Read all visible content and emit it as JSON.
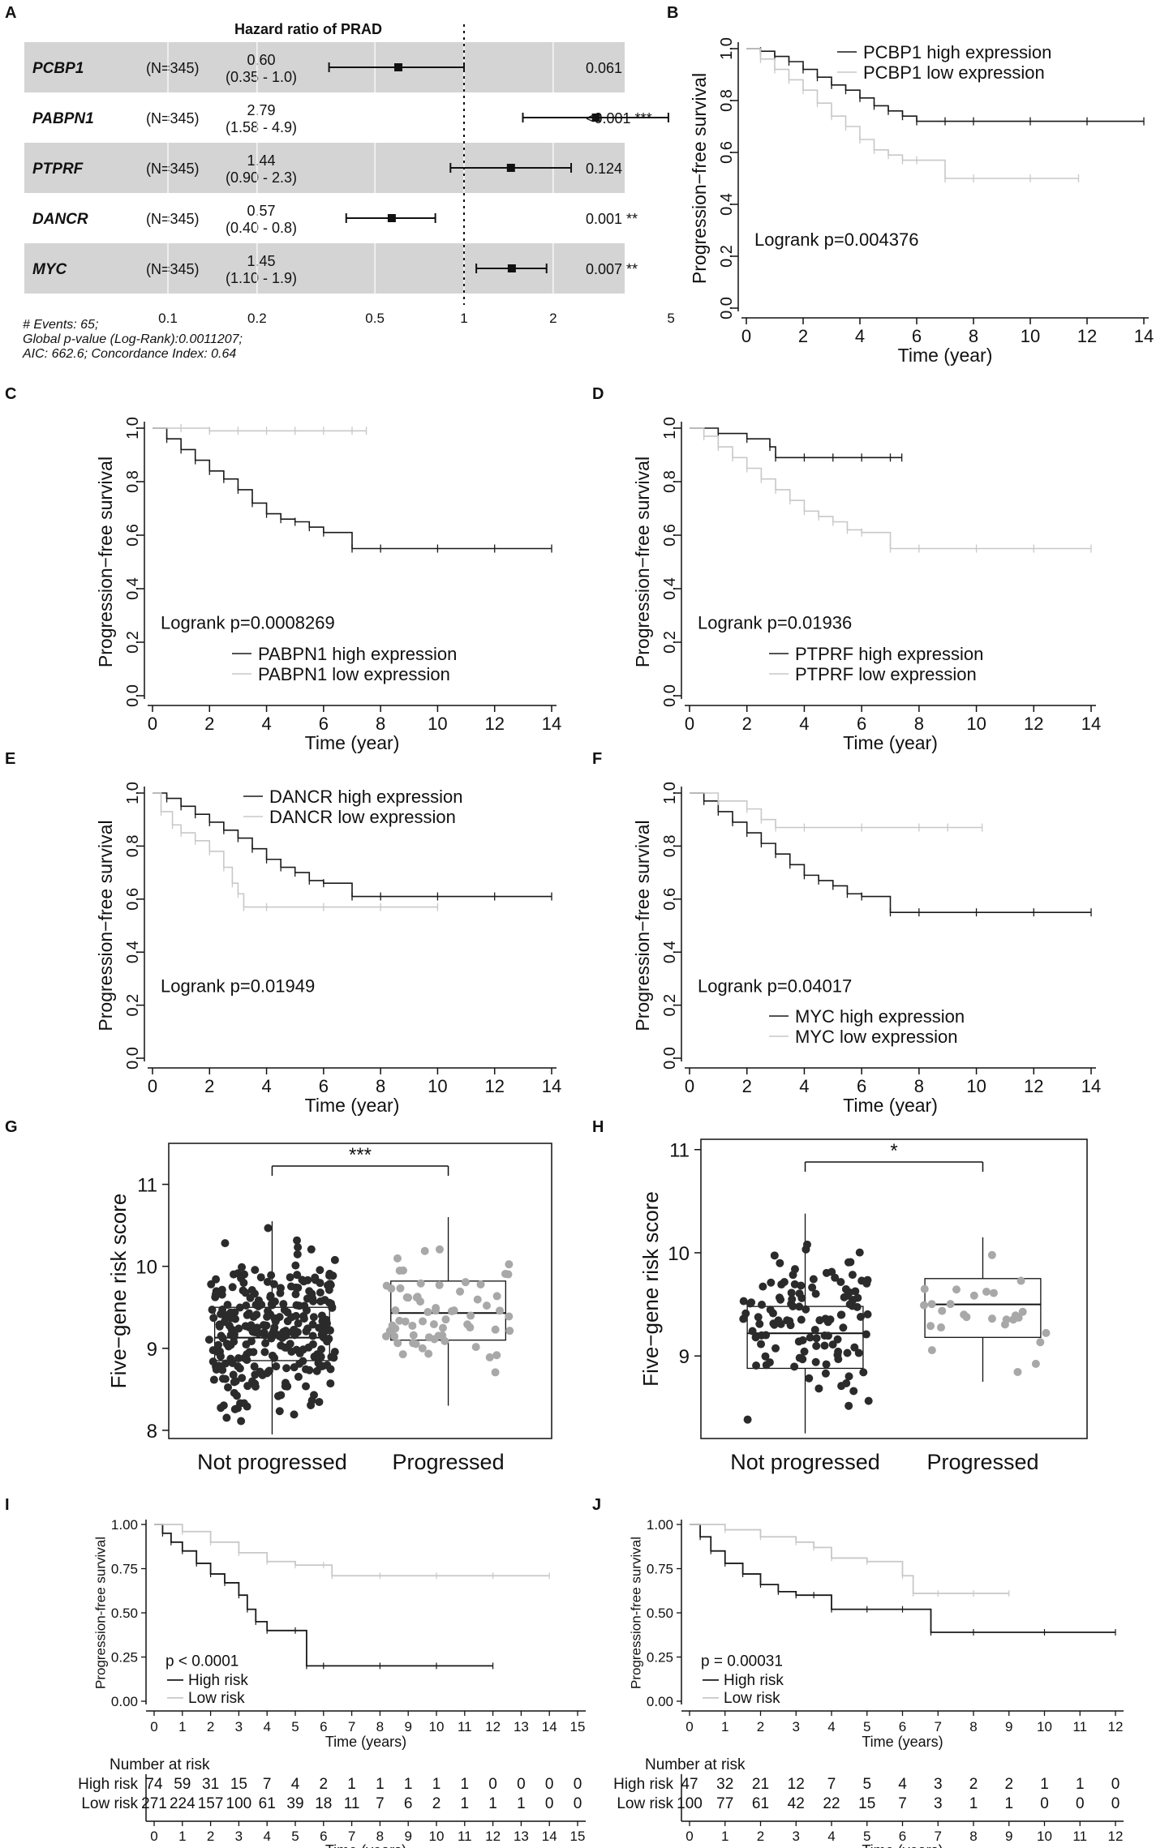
{
  "figure": {
    "panel_labels": [
      "A",
      "B",
      "C",
      "D",
      "E",
      "F",
      "G",
      "H",
      "I",
      "J"
    ]
  },
  "colors": {
    "high": "#1a1a1a",
    "low": "#c8c8c8",
    "forest_band": "#d4d4d4",
    "dark_point": "#2b2b2b",
    "light_point": "#a8a8a8"
  },
  "chart_data": [
    {
      "id": "A",
      "type": "forest",
      "title": "Hazard ratio of PRAD",
      "x_scale": "log",
      "x_ticks": [
        0.1,
        0.2,
        0.5,
        1,
        2,
        5
      ],
      "reference_line": 1,
      "rows": [
        {
          "gene": "PCBP1",
          "n": "(N=345)",
          "hr_text": "0.60",
          "ci_text": "(0.35 - 1.0)",
          "hr": 0.6,
          "lo": 0.35,
          "hi": 1.0,
          "p_text": "0.061",
          "shaded": true
        },
        {
          "gene": "PABPN1",
          "n": "(N=345)",
          "hr_text": "2.79",
          "ci_text": "(1.58 - 4.9)",
          "hr": 2.79,
          "lo": 1.58,
          "hi": 4.9,
          "p_text": "<0.001 ***",
          "shaded": false
        },
        {
          "gene": "PTPRF",
          "n": "(N=345)",
          "hr_text": "1.44",
          "ci_text": "(0.90 - 2.3)",
          "hr": 1.44,
          "lo": 0.9,
          "hi": 2.3,
          "p_text": "0.124",
          "shaded": true
        },
        {
          "gene": "DANCR",
          "n": "(N=345)",
          "hr_text": "0.57",
          "ci_text": "(0.40 - 0.8)",
          "hr": 0.57,
          "lo": 0.4,
          "hi": 0.8,
          "p_text": "0.001 **",
          "shaded": false
        },
        {
          "gene": "MYC",
          "n": "(N=345)",
          "hr_text": "1.45",
          "ci_text": "(1.10 - 1.9)",
          "hr": 1.45,
          "lo": 1.1,
          "hi": 1.9,
          "p_text": "0.007 **",
          "shaded": true
        }
      ],
      "footnotes": [
        "# Events: 65;",
        "Global p-value (Log-Rank):0.0011207;",
        "AIC: 662.6; Concordance Index: 0.64"
      ]
    },
    {
      "id": "B",
      "type": "km",
      "ylabel": "Progression−free survival",
      "xlabel": "Time (year)",
      "xlim": [
        0,
        14
      ],
      "ylim": [
        0,
        1
      ],
      "x_ticks": [
        0,
        2,
        4,
        6,
        8,
        10,
        12,
        14
      ],
      "y_ticks": [
        "0.0",
        "0.2",
        "0.4",
        "0.6",
        "0.8",
        "1.0"
      ],
      "legend_position": "top",
      "pvalue_text": "Logrank p=0.004376",
      "pvalue_position": "lower-middle",
      "series": [
        {
          "name": "PCBP1 high expression",
          "group": "high",
          "x": [
            0,
            0.5,
            1,
            1.5,
            2,
            2.5,
            3,
            3.5,
            4,
            4.5,
            5,
            5.5,
            6,
            7,
            8,
            10,
            12,
            14
          ],
          "y": [
            1,
            0.99,
            0.97,
            0.95,
            0.92,
            0.89,
            0.86,
            0.84,
            0.81,
            0.78,
            0.76,
            0.74,
            0.72,
            0.72,
            0.72,
            0.72,
            0.72,
            0.72
          ]
        },
        {
          "name": "PCBP1 low expression",
          "group": "low",
          "x": [
            0,
            0.5,
            1,
            1.5,
            2,
            2.5,
            3,
            3.5,
            4,
            4.5,
            5,
            5.5,
            6,
            7,
            8,
            10,
            11.7
          ],
          "y": [
            1,
            0.96,
            0.92,
            0.88,
            0.84,
            0.79,
            0.74,
            0.7,
            0.65,
            0.61,
            0.59,
            0.57,
            0.57,
            0.5,
            0.5,
            0.5,
            0.5
          ]
        }
      ]
    },
    {
      "id": "C",
      "type": "km",
      "ylabel": "Progression−free survival",
      "xlabel": "Time (year)",
      "xlim": [
        0,
        14
      ],
      "ylim": [
        0,
        1
      ],
      "x_ticks": [
        0,
        2,
        4,
        6,
        8,
        10,
        12,
        14
      ],
      "y_ticks": [
        "0.0",
        "0.2",
        "0.4",
        "0.6",
        "0.8",
        "1.0"
      ],
      "legend_position": "bottom",
      "pvalue_text": "Logrank p=0.0008269",
      "pvalue_position": "lower-left",
      "series": [
        {
          "name": "PABPN1 high expression",
          "group": "high",
          "x": [
            0,
            0.5,
            1,
            1.5,
            2,
            2.5,
            3,
            3.5,
            4,
            4.5,
            5,
            5.5,
            6,
            7,
            8,
            10,
            12,
            14
          ],
          "y": [
            1,
            0.96,
            0.92,
            0.88,
            0.84,
            0.81,
            0.77,
            0.72,
            0.68,
            0.66,
            0.65,
            0.63,
            0.61,
            0.55,
            0.55,
            0.55,
            0.55,
            0.55
          ]
        },
        {
          "name": "PABPN1 low expression",
          "group": "low",
          "x": [
            0,
            1,
            2,
            3,
            4,
            5,
            6,
            7,
            7.5
          ],
          "y": [
            1,
            1,
            0.99,
            0.99,
            0.99,
            0.99,
            0.99,
            0.99,
            0.99
          ]
        }
      ]
    },
    {
      "id": "D",
      "type": "km",
      "ylabel": "Progression−free survival",
      "xlabel": "Time (year)",
      "xlim": [
        0,
        14
      ],
      "ylim": [
        0,
        1
      ],
      "x_ticks": [
        0,
        2,
        4,
        6,
        8,
        10,
        12,
        14
      ],
      "y_ticks": [
        "0.0",
        "0.2",
        "0.4",
        "0.6",
        "0.8",
        "1.0"
      ],
      "legend_position": "bottom",
      "pvalue_text": "Logrank p=0.01936",
      "pvalue_position": "lower-left",
      "series": [
        {
          "name": "PTPRF high expression",
          "group": "high",
          "x": [
            0,
            1,
            2,
            2.8,
            3,
            4,
            5,
            6,
            7,
            7.4
          ],
          "y": [
            1,
            0.98,
            0.96,
            0.93,
            0.89,
            0.89,
            0.89,
            0.89,
            0.89,
            0.89
          ]
        },
        {
          "name": "PTPRF low expression",
          "group": "low",
          "x": [
            0,
            0.5,
            1,
            1.5,
            2,
            2.5,
            3,
            3.5,
            4,
            4.5,
            5,
            5.5,
            6,
            7,
            8,
            10,
            12,
            14
          ],
          "y": [
            1,
            0.97,
            0.93,
            0.89,
            0.85,
            0.81,
            0.77,
            0.73,
            0.69,
            0.67,
            0.65,
            0.62,
            0.61,
            0.55,
            0.55,
            0.55,
            0.55,
            0.55
          ]
        }
      ]
    },
    {
      "id": "E",
      "type": "km",
      "ylabel": "Progression−free survival",
      "xlabel": "Time (year)",
      "xlim": [
        0,
        14
      ],
      "ylim": [
        0,
        1
      ],
      "x_ticks": [
        0,
        2,
        4,
        6,
        8,
        10,
        12,
        14
      ],
      "y_ticks": [
        "0.0",
        "0.2",
        "0.4",
        "0.6",
        "0.8",
        "1.0"
      ],
      "legend_position": "top",
      "pvalue_text": "Logrank p=0.01949",
      "pvalue_position": "lower-left",
      "series": [
        {
          "name": "DANCR high expression",
          "group": "high",
          "x": [
            0,
            0.5,
            1,
            1.5,
            2,
            2.5,
            3,
            3.5,
            4,
            4.5,
            5,
            5.5,
            6,
            7,
            8,
            10,
            12,
            14
          ],
          "y": [
            1,
            0.98,
            0.95,
            0.92,
            0.89,
            0.86,
            0.83,
            0.79,
            0.75,
            0.72,
            0.7,
            0.67,
            0.66,
            0.61,
            0.61,
            0.61,
            0.61,
            0.61
          ]
        },
        {
          "name": "DANCR low expression",
          "group": "low",
          "x": [
            0,
            0.3,
            0.7,
            1,
            1.5,
            2,
            2.5,
            2.8,
            3,
            3.2,
            4,
            6,
            8,
            10
          ],
          "y": [
            1,
            0.93,
            0.88,
            0.85,
            0.82,
            0.78,
            0.72,
            0.66,
            0.62,
            0.57,
            0.57,
            0.57,
            0.57,
            0.57
          ]
        }
      ]
    },
    {
      "id": "F",
      "type": "km",
      "ylabel": "Progression−free survival",
      "xlabel": "Time (year)",
      "xlim": [
        0,
        14
      ],
      "ylim": [
        0,
        1
      ],
      "x_ticks": [
        0,
        2,
        4,
        6,
        8,
        10,
        12,
        14
      ],
      "y_ticks": [
        "0.0",
        "0.2",
        "0.4",
        "0.6",
        "0.8",
        "1.0"
      ],
      "legend_position": "bottom",
      "pvalue_text": "Logrank p=0.04017",
      "pvalue_position": "lower-left",
      "series": [
        {
          "name": "MYC high expression",
          "group": "high",
          "x": [
            0,
            0.5,
            1,
            1.5,
            2,
            2.5,
            3,
            3.5,
            4,
            4.5,
            5,
            5.5,
            6,
            7,
            8,
            10,
            12,
            14
          ],
          "y": [
            1,
            0.97,
            0.93,
            0.89,
            0.85,
            0.81,
            0.77,
            0.73,
            0.69,
            0.67,
            0.65,
            0.62,
            0.61,
            0.55,
            0.55,
            0.55,
            0.55,
            0.55
          ]
        },
        {
          "name": "MYC low expression",
          "group": "low",
          "x": [
            0,
            1,
            2,
            2.5,
            3,
            4,
            6,
            8,
            9,
            10.2
          ],
          "y": [
            1,
            0.97,
            0.94,
            0.9,
            0.87,
            0.87,
            0.87,
            0.87,
            0.87,
            0.87
          ]
        }
      ]
    },
    {
      "id": "G",
      "type": "box",
      "ylabel": "Five−gene risk score",
      "ylim": [
        7.9,
        11.5
      ],
      "y_ticks": [
        8,
        9,
        10,
        11
      ],
      "categories": [
        "Not progressed",
        "Progressed"
      ],
      "boxes": [
        {
          "name": "Not progressed",
          "min": 7.95,
          "q1": 8.85,
          "median": 9.13,
          "q3": 9.5,
          "max": 10.55,
          "n_points": 280,
          "point_group": "dark"
        },
        {
          "name": "Progressed",
          "min": 8.3,
          "q1": 9.1,
          "median": 9.43,
          "q3": 9.82,
          "max": 10.6,
          "n_points": 65,
          "point_group": "light"
        }
      ],
      "significance": "***"
    },
    {
      "id": "H",
      "type": "box",
      "ylabel": "Five−gene risk score",
      "ylim": [
        8.2,
        11.1
      ],
      "y_ticks": [
        9,
        10,
        11
      ],
      "categories": [
        "Not progressed",
        "Progressed"
      ],
      "boxes": [
        {
          "name": "Not progressed",
          "min": 8.25,
          "q1": 8.88,
          "median": 9.22,
          "q3": 9.48,
          "max": 10.38,
          "n_points": 120,
          "point_group": "dark"
        },
        {
          "name": "Progressed",
          "min": 8.75,
          "q1": 9.18,
          "median": 9.5,
          "q3": 9.75,
          "max": 10.15,
          "n_points": 27,
          "point_group": "light"
        }
      ],
      "significance": "*"
    },
    {
      "id": "I",
      "type": "km_risk",
      "ylabel": "Progression-free survival",
      "xlabel": "Time (years)",
      "xlim": [
        0,
        15
      ],
      "ylim": [
        0,
        1
      ],
      "x_ticks": [
        "0",
        "1",
        "2",
        "3",
        "4",
        "5",
        "6",
        "7",
        "8",
        "9",
        "10",
        "11",
        "12",
        "13",
        "14",
        "15"
      ],
      "y_ticks": [
        "0.00",
        "0.25",
        "0.50",
        "0.75",
        "1.00"
      ],
      "pvalue_text": "p < 0.0001",
      "series": [
        {
          "name": "High risk",
          "group": "high",
          "x": [
            0,
            0.3,
            0.6,
            1,
            1.5,
            2,
            2.5,
            3,
            3.3,
            3.6,
            4,
            5,
            5.4,
            6,
            8,
            10,
            12
          ],
          "y": [
            1,
            0.95,
            0.9,
            0.85,
            0.78,
            0.72,
            0.67,
            0.6,
            0.52,
            0.45,
            0.4,
            0.4,
            0.2,
            0.2,
            0.2,
            0.2,
            0.2
          ]
        },
        {
          "name": "Low risk",
          "group": "low",
          "x": [
            0,
            1,
            2,
            3,
            4,
            5,
            6,
            6.3,
            8,
            10,
            12,
            14
          ],
          "y": [
            1,
            0.96,
            0.9,
            0.84,
            0.79,
            0.77,
            0.77,
            0.71,
            0.71,
            0.71,
            0.71,
            0.71
          ]
        }
      ],
      "risk_table": {
        "title": "Number at risk",
        "rows": [
          {
            "label": "High risk",
            "values": [
              "74",
              "59",
              "31",
              "15",
              "7",
              "4",
              "2",
              "1",
              "1",
              "1",
              "1",
              "1",
              "0",
              "0",
              "0",
              "0"
            ]
          },
          {
            "label": "Low risk",
            "values": [
              "271",
              "224",
              "157",
              "100",
              "61",
              "39",
              "18",
              "11",
              "7",
              "6",
              "2",
              "1",
              "1",
              "1",
              "0",
              "0"
            ]
          }
        ],
        "xlabel": "Time (years)"
      }
    },
    {
      "id": "J",
      "type": "km_risk",
      "ylabel": "Progression-free survival",
      "xlabel": "Time (years)",
      "xlim": [
        0,
        12
      ],
      "ylim": [
        0,
        1
      ],
      "x_ticks": [
        "0",
        "1",
        "2",
        "3",
        "4",
        "5",
        "6",
        "7",
        "8",
        "9",
        "10",
        "11",
        "12"
      ],
      "y_ticks": [
        "0.00",
        "0.25",
        "0.50",
        "0.75",
        "1.00"
      ],
      "pvalue_text": "p = 0.00031",
      "series": [
        {
          "name": "High risk",
          "group": "high",
          "x": [
            0,
            0.3,
            0.6,
            1,
            1.5,
            2,
            2.5,
            3,
            3.5,
            4,
            5,
            6,
            6.8,
            8,
            10,
            12
          ],
          "y": [
            1,
            0.93,
            0.85,
            0.78,
            0.72,
            0.66,
            0.62,
            0.6,
            0.6,
            0.52,
            0.52,
            0.52,
            0.39,
            0.39,
            0.39,
            0.39
          ]
        },
        {
          "name": "Low risk",
          "group": "low",
          "x": [
            0,
            1,
            2,
            3,
            3.5,
            4,
            5,
            6,
            6.3,
            7,
            8,
            9
          ],
          "y": [
            1,
            0.97,
            0.93,
            0.9,
            0.87,
            0.81,
            0.79,
            0.71,
            0.61,
            0.61,
            0.61,
            0.61
          ]
        }
      ],
      "risk_table": {
        "title": "Number at risk",
        "rows": [
          {
            "label": "High risk",
            "values": [
              "47",
              "32",
              "21",
              "12",
              "7",
              "5",
              "4",
              "3",
              "2",
              "2",
              "1",
              "1",
              "0"
            ]
          },
          {
            "label": "Low risk",
            "values": [
              "100",
              "77",
              "61",
              "42",
              "22",
              "15",
              "7",
              "3",
              "1",
              "1",
              "0",
              "0",
              "0"
            ]
          }
        ],
        "xlabel": "Time (years)"
      }
    }
  ]
}
